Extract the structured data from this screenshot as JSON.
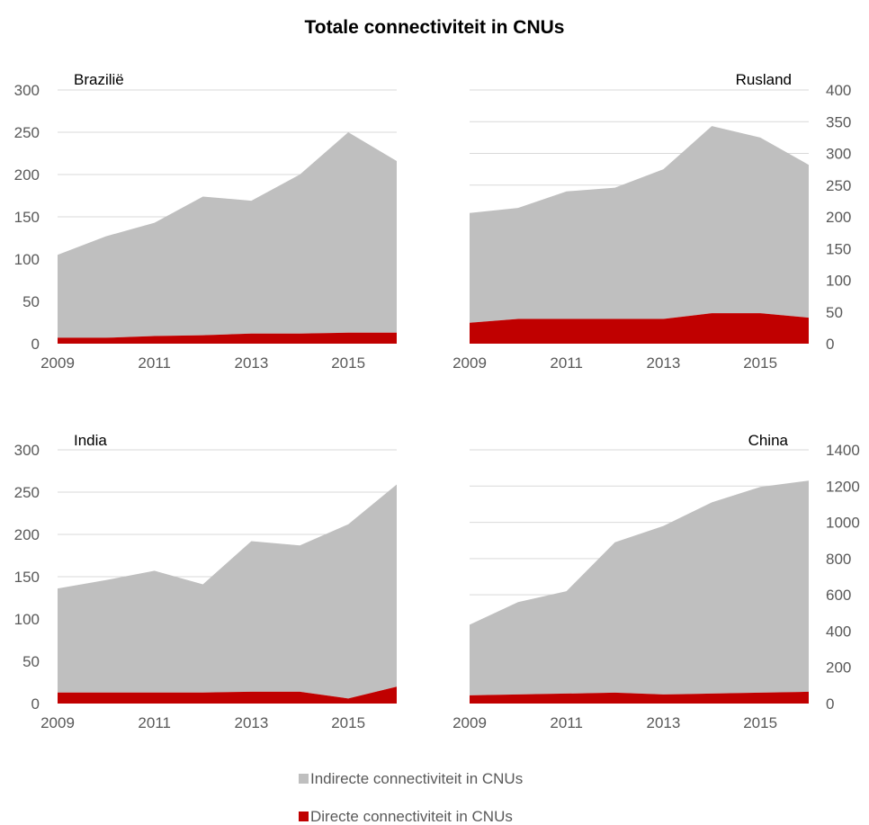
{
  "title": "Totale connectiviteit in CNUs",
  "colors": {
    "indirect": "#BFBFBF",
    "direct": "#C00000",
    "grid": "#D9D9D9",
    "tick_text": "#595959"
  },
  "legend": {
    "indirect_label": "Indirecte connectiviteit in CNUs",
    "direct_label": "Directe connectiviteit in CNUs"
  },
  "chart_data": [
    {
      "type": "area",
      "label": "Brazilië",
      "x": [
        2009,
        2010,
        2011,
        2012,
        2013,
        2014,
        2015,
        2016
      ],
      "x_ticks": [
        "2009",
        "2011",
        "2013",
        "2015"
      ],
      "ylim": [
        0,
        300
      ],
      "y_ticks": [
        "0",
        "50",
        "100",
        "150",
        "200",
        "250",
        "300"
      ],
      "y_axis_side": "left",
      "series": [
        {
          "name": "Directe connectiviteit in CNUs",
          "values": [
            7,
            7,
            9,
            10,
            12,
            12,
            13,
            13
          ]
        },
        {
          "name": "Indirecte connectiviteit in CNUs",
          "values": [
            98,
            120,
            134,
            164,
            157,
            188,
            237,
            203
          ]
        }
      ]
    },
    {
      "type": "area",
      "label": "Rusland",
      "x": [
        2009,
        2010,
        2011,
        2012,
        2013,
        2014,
        2015,
        2016
      ],
      "x_ticks": [
        "2009",
        "2011",
        "2013",
        "2015"
      ],
      "ylim": [
        0,
        400
      ],
      "y_ticks": [
        "0",
        "50",
        "100",
        "150",
        "200",
        "250",
        "300",
        "350",
        "400"
      ],
      "y_axis_side": "right",
      "series": [
        {
          "name": "Directe connectiviteit in CNUs",
          "values": [
            33,
            39,
            39,
            39,
            39,
            48,
            48,
            41
          ]
        },
        {
          "name": "Indirecte connectiviteit in CNUs",
          "values": [
            173,
            175,
            201,
            207,
            236,
            295,
            277,
            241
          ]
        }
      ]
    },
    {
      "type": "area",
      "label": "India",
      "x": [
        2009,
        2010,
        2011,
        2012,
        2013,
        2014,
        2015,
        2016
      ],
      "x_ticks": [
        "2009",
        "2011",
        "2013",
        "2015"
      ],
      "ylim": [
        0,
        300
      ],
      "y_ticks": [
        "0",
        "50",
        "100",
        "150",
        "200",
        "250",
        "300"
      ],
      "y_axis_side": "left",
      "series": [
        {
          "name": "Directe connectiviteit in CNUs",
          "values": [
            13,
            13,
            13,
            13,
            14,
            14,
            6,
            20
          ]
        },
        {
          "name": "Indirecte connectiviteit in CNUs",
          "values": [
            123,
            133,
            144,
            128,
            178,
            173,
            206,
            239
          ]
        }
      ]
    },
    {
      "type": "area",
      "label": "China",
      "x": [
        2009,
        2010,
        2011,
        2012,
        2013,
        2014,
        2015,
        2016
      ],
      "x_ticks": [
        "2009",
        "2011",
        "2013",
        "2015"
      ],
      "ylim": [
        0,
        1400
      ],
      "y_ticks": [
        "0",
        "200",
        "400",
        "600",
        "800",
        "1000",
        "1200",
        "1400"
      ],
      "y_axis_side": "right",
      "series": [
        {
          "name": "Directe connectiviteit in CNUs",
          "values": [
            45,
            50,
            55,
            60,
            50,
            55,
            60,
            65
          ]
        },
        {
          "name": "Indirecte connectiviteit in CNUs",
          "values": [
            390,
            510,
            565,
            830,
            930,
            1055,
            1135,
            1165
          ]
        }
      ]
    }
  ]
}
